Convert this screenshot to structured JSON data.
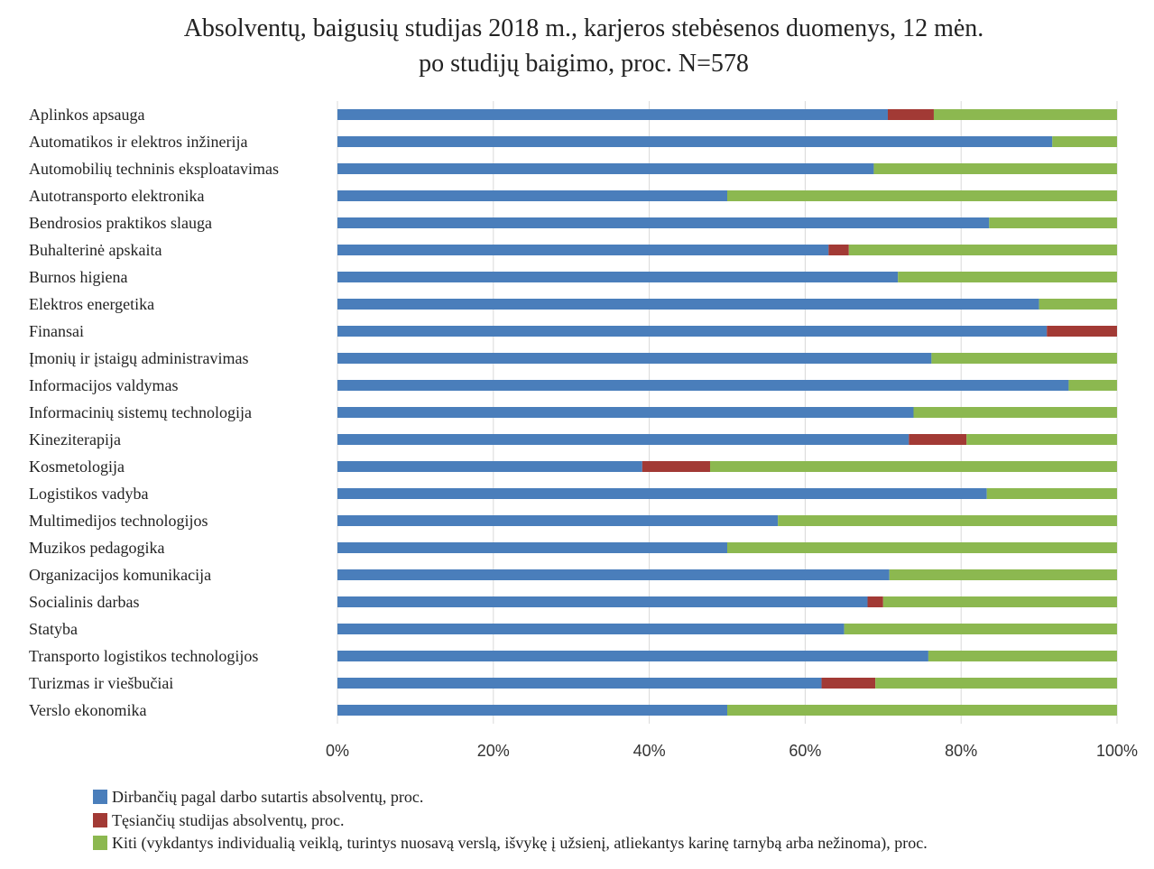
{
  "chart_data": {
    "type": "bar",
    "orientation": "horizontal",
    "stacked": "percent",
    "title_lines": [
      "Absolventų, baigusių studijas 2018 m., karjeros stebėsenos duomenys,  12 mėn.",
      "po studijų baigimo, proc. N=578"
    ],
    "categories": [
      "Aplinkos apsauga",
      "Automatikos ir elektros inžinerija",
      "Automobilių techninis eksploatavimas",
      "Autotransporto elektronika",
      "Bendrosios praktikos slauga",
      "Buhalterinė apskaita",
      "Burnos higiena",
      "Elektros energetika",
      "Finansai",
      "Įmonių ir įstaigų administravimas",
      "Informacijos valdymas",
      "Informacinių sistemų technologija",
      "Kineziterapija",
      "Kosmetologija",
      "Logistikos vadyba",
      "Multimedijos technologijos",
      "Muzikos pedagogika",
      "Organizacijos komunikacija",
      "Socialinis darbas",
      "Statyba",
      "Transporto logistikos technologijos",
      "Turizmas ir viešbučiai",
      "Verslo ekonomika"
    ],
    "series": [
      {
        "name": "Dirbančių pagal darbo sutartis absolventų, proc.",
        "color": "#4a7ebb",
        "values": [
          70.6,
          91.7,
          68.8,
          50.0,
          83.6,
          63.0,
          71.9,
          90.0,
          91.0,
          76.2,
          93.8,
          73.9,
          73.3,
          39.1,
          83.3,
          56.5,
          50.0,
          70.8,
          68.0,
          65.0,
          75.8,
          62.1,
          50.0
        ]
      },
      {
        "name": "Tęsiančių studijas absolventų, proc.",
        "color": "#a23a35",
        "values": [
          5.9,
          0,
          0,
          0,
          0,
          2.6,
          0,
          0,
          9.0,
          0,
          0,
          0,
          7.4,
          8.7,
          0,
          0,
          0,
          0,
          2.0,
          0,
          0,
          6.9,
          0
        ]
      },
      {
        "name": "Kiti (vykdantys individualią veiklą, turintys nuosavą verslą, išvykę į užsienį, atliekantys karinę tarnybą arba nežinoma), proc.",
        "color": "#8cb850",
        "values": [
          23.5,
          8.3,
          31.2,
          50.0,
          16.4,
          34.4,
          28.1,
          10.0,
          0,
          23.8,
          6.2,
          26.1,
          19.3,
          52.2,
          16.7,
          43.5,
          50.0,
          29.2,
          30.0,
          35.0,
          24.2,
          31.0,
          50.0
        ]
      }
    ],
    "xlim": [
      0,
      100
    ],
    "x_ticks": [
      "0%",
      "20%",
      "40%",
      "60%",
      "80%",
      "100%"
    ],
    "grid": true,
    "legend_position": "bottom-left"
  }
}
